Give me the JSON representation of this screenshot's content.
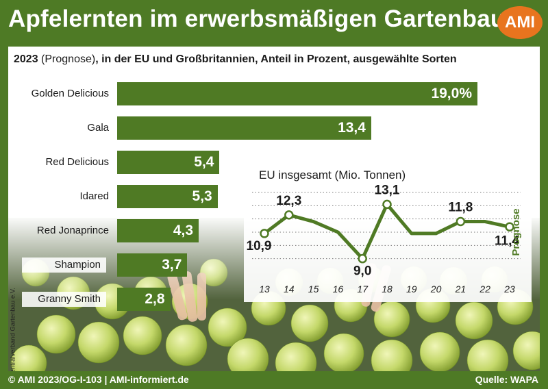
{
  "header": {
    "title": "Apfelernten im erwerbsmäßigen Gartenbau",
    "logo": "AMI"
  },
  "subtitle": {
    "year": "2023",
    "note": "(Prognose)",
    "rest": ", in der EU und Großbritannien, Anteil in Prozent, ausgewählte Sorten"
  },
  "photo_credit": "Foto: Zentralverband Gartenbau e.V.",
  "footer": {
    "left": "© AMI 2023/OG-I-103 | AMI-informiert.de",
    "right": "Quelle: WAPA"
  },
  "colors": {
    "frame": "#4e7a25",
    "bar": "#4f7a24",
    "line": "#4f7a24",
    "logo": "#e8741e"
  },
  "chart_data": [
    {
      "type": "bar",
      "orientation": "horizontal",
      "categories": [
        "Golden Delicious",
        "Gala",
        "Red Delicious",
        "Idared",
        "Red Jonaprince",
        "Shampion",
        "Granny Smith"
      ],
      "values": [
        19.0,
        13.4,
        5.4,
        5.3,
        4.3,
        3.7,
        2.8
      ],
      "value_labels": [
        "19,0%",
        "13,4",
        "5,4",
        "5,3",
        "4,3",
        "3,7",
        "2,8"
      ],
      "unit": "%"
    },
    {
      "type": "line",
      "title": "EU insgesamt (Mio. Tonnen)",
      "x": [
        "13",
        "14",
        "15",
        "16",
        "17",
        "18",
        "19",
        "20",
        "21",
        "22",
        "23"
      ],
      "y": [
        10.9,
        12.3,
        11.8,
        11.0,
        9.0,
        13.1,
        10.9,
        10.9,
        11.8,
        11.8,
        11.4
      ],
      "point_labels": [
        {
          "index": 0,
          "text": "10,9"
        },
        {
          "index": 1,
          "text": "12,3"
        },
        {
          "index": 4,
          "text": "9,0"
        },
        {
          "index": 5,
          "text": "13,1"
        },
        {
          "index": 8,
          "text": "11,8"
        },
        {
          "index": 10,
          "text": "11,4"
        }
      ],
      "markers_at": [
        0,
        1,
        4,
        5,
        8,
        10
      ],
      "forecast_label": "Prognose",
      "ylim": [
        8,
        14
      ],
      "grid": "horizontal dotted"
    }
  ]
}
